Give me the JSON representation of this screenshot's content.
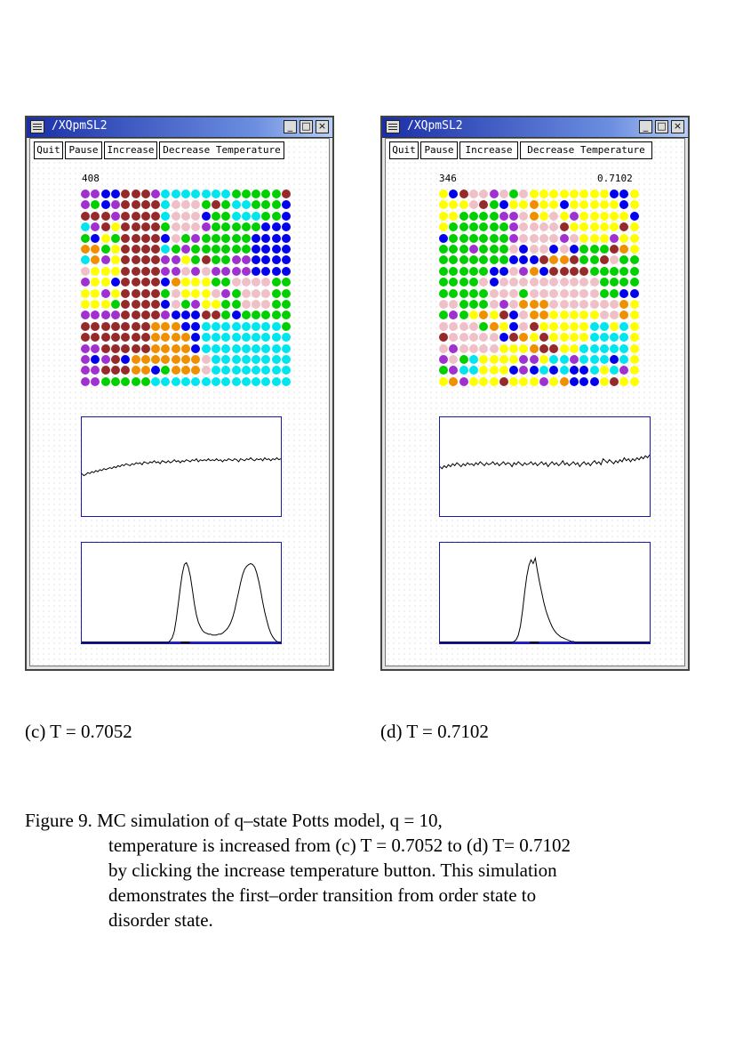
{
  "windows": [
    {
      "title": "/XQpmSL2",
      "buttons": [
        "Quit",
        "Pause",
        "Increase",
        "Decrease Temperature"
      ],
      "counter": "408",
      "temperature_readout": "",
      "caption": "(c) T = 0.7052",
      "grid": [
        "M M B B R R R M C C C C C C C G G G G G R",
        "M G B M R R R R C P P P G R G C C G G G B",
        "R R R M R R R R C P P P B G G C C C G G B",
        "C M R Y R R R R G P P P M G G G G G B B B",
        "G B Y G R R R R B P G M G G G G G B B B B",
        "O O G Y R R R R C G M G G G G G G B B B B",
        "C O M Y R R R R M M Y G R G G M M B B B B",
        "P Y Y Y R R R R M M P M P M M M M B B B B",
        "M Y Y B R R R R B O Y Y Y G G P P P P G G",
        "Y Y M Y R R R R G P Y Y Y P M G P P P G G",
        "Y Y Y G R R R R B P G M Y Y G G P P P G G",
        "M M M M R R R R M B B B R R G B G G G G G",
        "R R R R R R R O O O B B C C C C C C C C G",
        "R R R R R R R O O O O B C C C C C C C C C",
        "M M R R R R R O O O O B C C C C C C C C C",
        "M B M R B O O O O O O O P C C C C C C C C",
        "M M R R R O O B G O O O P C C C C C C C C",
        "M M G G G G G C C C C C C C C C C C C C C"
      ],
      "energy_series": [
        0.57,
        0.59,
        0.58,
        0.56,
        0.57,
        0.55,
        0.56,
        0.54,
        0.55,
        0.53,
        0.54,
        0.52,
        0.53,
        0.52,
        0.51,
        0.52,
        0.5,
        0.51,
        0.49,
        0.5,
        0.48,
        0.49,
        0.47,
        0.48,
        0.49,
        0.47,
        0.48,
        0.46,
        0.47,
        0.46,
        0.48,
        0.45,
        0.46,
        0.47,
        0.45,
        0.46,
        0.44,
        0.46,
        0.45,
        0.47,
        0.44,
        0.45,
        0.46,
        0.44,
        0.46,
        0.45,
        0.43,
        0.45,
        0.44,
        0.46,
        0.44,
        0.45,
        0.43,
        0.44,
        0.45,
        0.43,
        0.44,
        0.42,
        0.45,
        0.43,
        0.44,
        0.43,
        0.44,
        0.42,
        0.44,
        0.43,
        0.44,
        0.42,
        0.44,
        0.43,
        0.45,
        0.43,
        0.44,
        0.42,
        0.43,
        0.44,
        0.42,
        0.43,
        0.45,
        0.42,
        0.43,
        0.44,
        0.42,
        0.43,
        0.41,
        0.43,
        0.44,
        0.42,
        0.43,
        0.42,
        0.44,
        0.41,
        0.43,
        0.42,
        0.44,
        0.42,
        0.43,
        0.41,
        0.43,
        0.42
      ],
      "histogram": [
        0,
        0,
        0,
        0,
        0,
        0,
        0,
        0,
        0,
        0,
        0,
        0,
        0,
        0,
        0,
        0,
        0,
        0,
        0,
        0,
        0,
        0,
        0,
        0,
        0,
        0,
        0,
        0,
        0,
        0,
        0,
        0,
        0,
        0,
        0,
        0,
        0,
        0,
        0,
        0,
        0,
        0,
        0,
        0,
        0.02,
        0.05,
        0.12,
        0.25,
        0.42,
        0.6,
        0.75,
        0.85,
        0.87,
        0.82,
        0.72,
        0.58,
        0.42,
        0.3,
        0.22,
        0.17,
        0.13,
        0.11,
        0.1,
        0.09,
        0.09,
        0.08,
        0.08,
        0.08,
        0.09,
        0.09,
        0.1,
        0.12,
        0.14,
        0.17,
        0.21,
        0.27,
        0.35,
        0.45,
        0.55,
        0.65,
        0.74,
        0.8,
        0.83,
        0.85,
        0.86,
        0.85,
        0.82,
        0.76,
        0.67,
        0.56,
        0.44,
        0.33,
        0.24,
        0.16,
        0.1,
        0.06,
        0.03,
        0.01,
        0,
        0
      ],
      "marker_position": 0.52
    },
    {
      "title": "/XQpmSL2",
      "buttons": [
        "Quit",
        "Pause",
        "Increase",
        "Decrease Temperature"
      ],
      "counter": "346",
      "temperature_readout": "0.7102",
      "caption": "(d) T = 0.7102",
      "grid": [
        "Y B R P P M P G P Y Y Y Y Y Y Y Y B B Y",
        "Y Y Y P R G B Y Y O Y Y B Y Y Y Y Y B Y",
        "Y Y G G G G M M P O Y P Y M Y Y Y Y Y B",
        "Y G G G G G G M P P P P R Y Y Y Y Y R Y",
        "B G G G G G G M P P P P M P Y Y Y M Y Y",
        "G G G M G G G P B P P B P B G G G R O Y",
        "G G G G G G G B B B R O O R G G R P G G",
        "G G G G G B B P M O B R R R R G G G G G",
        "G G G G P B P P P P P P P P P P G G G G",
        "G G G G G P P P G P P P P P P P G G B B",
        "P P G G G P M P O O O P P P P P P P O Y",
        "G M G Y O Y R B P O O Y Y Y Y Y P P O Y",
        "P P P P G O Y B P R Y Y Y Y Y C C Y C Y",
        "R P P P P P B R O Y R Y Y Y Y C C C C Y",
        "P M P P P P Y Y Y O R R Y Y C C C C C Y",
        "M P G C Y Y Y Y M M Y C C M C C C B C Y",
        "G M C C Y Y Y B M B C B C B B C Y C M Y",
        "Y O M Y Y Y R Y Y Y M Y O B B B Y R Y Y"
      ],
      "energy_series": [
        0.5,
        0.52,
        0.49,
        0.51,
        0.48,
        0.5,
        0.47,
        0.49,
        0.46,
        0.48,
        0.5,
        0.47,
        0.49,
        0.46,
        0.48,
        0.47,
        0.49,
        0.46,
        0.48,
        0.45,
        0.47,
        0.49,
        0.46,
        0.48,
        0.47,
        0.45,
        0.48,
        0.46,
        0.49,
        0.47,
        0.45,
        0.48,
        0.46,
        0.47,
        0.5,
        0.46,
        0.48,
        0.45,
        0.47,
        0.49,
        0.46,
        0.48,
        0.47,
        0.45,
        0.48,
        0.46,
        0.49,
        0.47,
        0.45,
        0.48,
        0.46,
        0.5,
        0.47,
        0.45,
        0.48,
        0.46,
        0.49,
        0.47,
        0.44,
        0.48,
        0.46,
        0.49,
        0.47,
        0.45,
        0.48,
        0.46,
        0.5,
        0.47,
        0.45,
        0.48,
        0.46,
        0.49,
        0.46,
        0.44,
        0.47,
        0.45,
        0.48,
        0.42,
        0.44,
        0.46,
        0.43,
        0.45,
        0.47,
        0.44,
        0.46,
        0.43,
        0.45,
        0.41,
        0.44,
        0.42,
        0.45,
        0.42,
        0.44,
        0.41,
        0.43,
        0.4,
        0.42,
        0.39,
        0.41,
        0.38
      ],
      "histogram": [
        0,
        0,
        0,
        0,
        0,
        0,
        0,
        0,
        0,
        0,
        0,
        0,
        0,
        0,
        0,
        0,
        0,
        0,
        0,
        0,
        0,
        0,
        0,
        0,
        0,
        0,
        0,
        0,
        0,
        0,
        0,
        0,
        0,
        0,
        0,
        0.01,
        0.03,
        0.08,
        0.18,
        0.35,
        0.55,
        0.72,
        0.84,
        0.9,
        0.86,
        0.92,
        0.78,
        0.66,
        0.55,
        0.44,
        0.35,
        0.28,
        0.22,
        0.17,
        0.13,
        0.1,
        0.08,
        0.06,
        0.05,
        0.04,
        0.03,
        0.02,
        0.01,
        0.01,
        0,
        0,
        0,
        0,
        0,
        0,
        0,
        0,
        0,
        0,
        0,
        0,
        0,
        0,
        0,
        0,
        0,
        0,
        0,
        0,
        0,
        0,
        0,
        0,
        0,
        0,
        0,
        0,
        0,
        0,
        0,
        0,
        0,
        0,
        0,
        0
      ],
      "marker_position": 0.45
    }
  ],
  "spin_colors": {
    "M": "#a030d0",
    "B": "#0000ee",
    "R": "#962a2a",
    "C": "#00e6ee",
    "G": "#00d000",
    "P": "#f0c0c8",
    "Y": "#ffff00",
    "O": "#f09000",
    "K": "#ff00ff",
    "X": "#ff1010"
  },
  "figure_caption": {
    "lines": [
      "Figure 9. MC simulation of q–state Potts model, q = 10,",
      "temperature is increased from (c) T = 0.7052 to (d) T= 0.7102",
      "by clicking the increase temperature button. This simulation",
      "demonstrates the first–order transition from order state to",
      "disorder state."
    ]
  }
}
